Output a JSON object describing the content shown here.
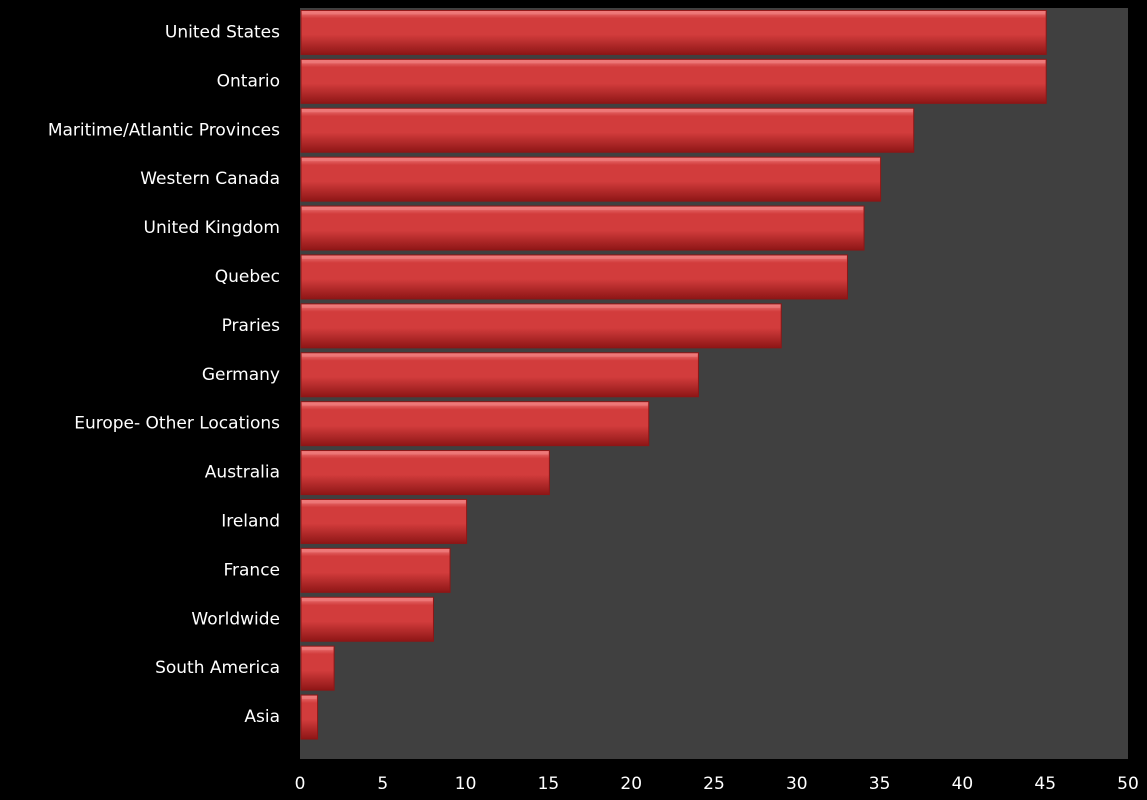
{
  "chart_data": {
    "type": "bar",
    "orientation": "horizontal",
    "categories": [
      "United States",
      "Ontario",
      "Maritime/Atlantic Provinces",
      "Western Canada",
      "United Kingdom",
      "Quebec",
      "Praries",
      "Germany",
      "Europe- Other Locations",
      "Australia",
      "Ireland",
      "France",
      "Worldwide",
      "South America",
      "Asia"
    ],
    "values": [
      45,
      45,
      37,
      35,
      34,
      33,
      29,
      24,
      21,
      15,
      10,
      9,
      8,
      2,
      1
    ],
    "xlim": [
      0,
      50
    ],
    "xticks": [
      0,
      5,
      10,
      15,
      20,
      25,
      30,
      35,
      40,
      45,
      50
    ],
    "grid": false,
    "legend": "none",
    "title": "",
    "xlabel": "",
    "ylabel": "",
    "colors": {
      "background": "#000000",
      "plot_area": "#404040",
      "bar_fill": "#d23c3c",
      "bar_highlight": "#f07e7e",
      "bar_shadow": "#8e1616",
      "text": "#ffffff"
    }
  }
}
